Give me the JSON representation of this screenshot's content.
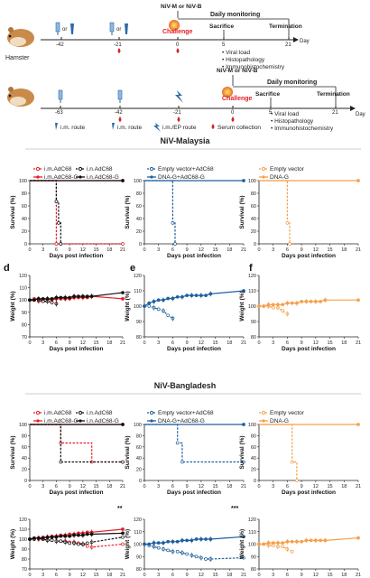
{
  "timeline1": {
    "challenge": "Challenge",
    "virus": "NiV-M or NiV-B",
    "daily": "Daily monitoring",
    "sacrifice": "Sacrifice",
    "termination": "Termination",
    "day": "Day",
    "animal": "Hamster",
    "or1": "or",
    "or2": "or",
    "days": [
      "-42",
      "-21",
      "0",
      "5",
      "21"
    ],
    "bullets": [
      "Viral load",
      "Histopathology",
      "Immunohistochemistry"
    ]
  },
  "timeline2": {
    "challenge": "Challenge",
    "virus": "NiV-M or NiV-B",
    "daily": "Daily monitoring",
    "sacrifice": "Sacrifice",
    "termination": "Termination",
    "day": "Day",
    "days": [
      "-63",
      "-42",
      "-21",
      "0",
      "5",
      "21"
    ],
    "bullets": [
      "Viral load",
      "Histopathology",
      "Immunohistochemistry"
    ],
    "legend": [
      "i.m. route",
      "i.m. route",
      "i.m./EP route",
      "Serum collection"
    ]
  },
  "sections": {
    "malaysia": "NiV-Malaysia",
    "bangladesh": "NiV-Bangladesh"
  },
  "panel_letters": [
    "d",
    "e",
    "f"
  ],
  "labels": {
    "survival": "Survival (%)",
    "weight": "Weight (%)",
    "xlabel": "Days post infection"
  },
  "legends": {
    "g1": [
      "i.m.AdC68",
      "i.m.AdC68-G",
      "i.n.AdC68",
      "i.n.AdC68-G"
    ],
    "g2": [
      "Empty vector+AdC68",
      "DNA-G+AdC68-G"
    ],
    "g3": [
      "Empty vector",
      "DNA-G"
    ]
  },
  "significance": {
    "b_g1": "**",
    "b_g2": "***"
  },
  "colors": {
    "red": "#e41e26",
    "black": "#111111",
    "blue": "#1f5f9e",
    "orange": "#f5a04b"
  },
  "chart_data": [
    {
      "type": "line",
      "title": "",
      "panel": "M-survival-1",
      "ylabel": "Survival (%)",
      "xlabel": "Days post infection",
      "xlim": [
        0,
        21
      ],
      "ylim": [
        0,
        100
      ],
      "series": [
        {
          "name": "i.m.AdC68",
          "color": "#e41e26",
          "dash": true,
          "x": [
            0,
            6,
            6,
            21
          ],
          "y": [
            100,
            100,
            0,
            0
          ]
        },
        {
          "name": "i.m.AdC68-G",
          "color": "#e41e26",
          "dash": false,
          "x": [
            0,
            21
          ],
          "y": [
            100,
            100
          ]
        },
        {
          "name": "i.n.AdC68",
          "color": "#111111",
          "dash": true,
          "x": [
            0,
            6,
            6,
            6.5,
            6.5,
            7,
            7
          ],
          "y": [
            100,
            100,
            67,
            67,
            33,
            33,
            0
          ]
        },
        {
          "name": "i.n.AdC68-G",
          "color": "#111111",
          "dash": false,
          "x": [
            0,
            21
          ],
          "y": [
            100,
            100
          ]
        }
      ]
    },
    {
      "type": "line",
      "title": "",
      "panel": "M-survival-2",
      "ylabel": "Survival (%)",
      "xlabel": "Days post infection",
      "xlim": [
        0,
        21
      ],
      "ylim": [
        0,
        100
      ],
      "series": [
        {
          "name": "Empty vector+AdC68",
          "color": "#1f5f9e",
          "dash": true,
          "x": [
            0,
            6,
            6,
            6.5,
            6.5
          ],
          "y": [
            100,
            100,
            33,
            33,
            0
          ]
        },
        {
          "name": "DNA-G+AdC68-G",
          "color": "#1f5f9e",
          "dash": false,
          "x": [
            0,
            21
          ],
          "y": [
            100,
            100
          ]
        }
      ]
    },
    {
      "type": "line",
      "title": "",
      "panel": "M-survival-3",
      "ylabel": "Survival (%)",
      "xlabel": "Days post infection",
      "xlim": [
        0,
        21
      ],
      "ylim": [
        0,
        100
      ],
      "series": [
        {
          "name": "Empty vector",
          "color": "#f5a04b",
          "dash": true,
          "x": [
            0,
            6,
            6,
            6.5,
            6.5
          ],
          "y": [
            100,
            100,
            33,
            33,
            0
          ]
        },
        {
          "name": "DNA-G",
          "color": "#f5a04b",
          "dash": false,
          "x": [
            0,
            21
          ],
          "y": [
            100,
            100
          ]
        }
      ]
    },
    {
      "type": "line",
      "title": "",
      "panel": "M-weight-d",
      "ylabel": "Weight (%)",
      "xlabel": "Days post infection",
      "xlim": [
        0,
        21
      ],
      "ylim": [
        70,
        120
      ],
      "series": [
        {
          "name": "i.m.AdC68",
          "color": "#e41e26",
          "dash": true,
          "x": [
            0,
            1,
            2,
            3,
            4,
            5,
            6
          ],
          "y": [
            100,
            100,
            99,
            99,
            99,
            98,
            97
          ]
        },
        {
          "name": "i.m.AdC68-G",
          "color": "#e41e26",
          "dash": false,
          "x": [
            0,
            1,
            2,
            3,
            4,
            5,
            6,
            7,
            8,
            9,
            10,
            11,
            12,
            13,
            14,
            21
          ],
          "y": [
            100,
            101,
            101,
            100,
            101,
            100,
            101,
            101,
            101,
            101,
            102,
            102,
            102,
            102,
            103,
            101
          ]
        },
        {
          "name": "i.n.AdC68",
          "color": "#111111",
          "dash": true,
          "x": [
            0,
            1,
            2,
            3,
            4,
            5,
            6
          ],
          "y": [
            100,
            100,
            100,
            99,
            99,
            98,
            97
          ]
        },
        {
          "name": "i.n.AdC68-G",
          "color": "#111111",
          "dash": false,
          "x": [
            0,
            1,
            2,
            3,
            4,
            5,
            6,
            7,
            8,
            9,
            10,
            11,
            12,
            13,
            14,
            21
          ],
          "y": [
            100,
            100,
            101,
            101,
            101,
            101,
            102,
            102,
            102,
            102,
            103,
            103,
            103,
            103,
            103,
            106
          ]
        }
      ]
    },
    {
      "type": "line",
      "title": "",
      "panel": "M-weight-e",
      "ylabel": "Weight (%)",
      "xlabel": "Days post infection",
      "xlim": [
        0,
        21
      ],
      "ylim": [
        80,
        120
      ],
      "series": [
        {
          "name": "Empty vector+AdC68",
          "color": "#1f5f9e",
          "dash": true,
          "x": [
            0,
            1,
            2,
            3,
            4,
            5,
            6
          ],
          "y": [
            100,
            100,
            99,
            98,
            97,
            94,
            92
          ]
        },
        {
          "name": "DNA-G+AdC68-G",
          "color": "#1f5f9e",
          "dash": false,
          "x": [
            0,
            1,
            2,
            3,
            4,
            5,
            6,
            7,
            8,
            9,
            10,
            11,
            12,
            13,
            14,
            21
          ],
          "y": [
            100,
            102,
            103,
            104,
            104,
            105,
            105,
            106,
            106,
            107,
            107,
            107,
            107,
            107,
            108,
            110
          ]
        }
      ]
    },
    {
      "type": "line",
      "title": "",
      "panel": "M-weight-f",
      "ylabel": "Weight (%)",
      "xlabel": "Days post infection",
      "xlim": [
        0,
        21
      ],
      "ylim": [
        80,
        120
      ],
      "series": [
        {
          "name": "Empty vector",
          "color": "#f5a04b",
          "dash": true,
          "x": [
            0,
            1,
            2,
            3,
            4,
            5,
            6
          ],
          "y": [
            100,
            100,
            100,
            99,
            99,
            97,
            95
          ]
        },
        {
          "name": "DNA-G",
          "color": "#f5a04b",
          "dash": false,
          "x": [
            0,
            1,
            2,
            3,
            4,
            5,
            6,
            7,
            8,
            9,
            10,
            11,
            12,
            13,
            14,
            21
          ],
          "y": [
            100,
            100,
            101,
            101,
            101,
            101,
            102,
            102,
            102,
            103,
            103,
            103,
            103,
            103,
            104,
            104
          ]
        }
      ]
    },
    {
      "type": "line",
      "title": "",
      "panel": "B-survival-1",
      "ylabel": "Survival (%)",
      "xlabel": "Days post infection",
      "xlim": [
        0,
        21
      ],
      "ylim": [
        0,
        100
      ],
      "series": [
        {
          "name": "i.m.AdC68",
          "color": "#e41e26",
          "dash": true,
          "x": [
            0,
            7,
            7,
            14,
            14,
            21
          ],
          "y": [
            100,
            100,
            67,
            67,
            33,
            33
          ]
        },
        {
          "name": "i.m.AdC68-G",
          "color": "#e41e26",
          "dash": false,
          "x": [
            0,
            21
          ],
          "y": [
            100,
            100
          ]
        },
        {
          "name": "i.n.AdC68",
          "color": "#111111",
          "dash": true,
          "x": [
            0,
            7,
            7,
            21
          ],
          "y": [
            100,
            100,
            33,
            33
          ]
        },
        {
          "name": "i.n.AdC68-G",
          "color": "#111111",
          "dash": false,
          "x": [
            0,
            21
          ],
          "y": [
            100,
            100
          ]
        }
      ]
    },
    {
      "type": "line",
      "title": "",
      "panel": "B-survival-2",
      "ylabel": "Survival (%)",
      "xlabel": "Days post infection",
      "xlim": [
        0,
        21
      ],
      "ylim": [
        0,
        100
      ],
      "series": [
        {
          "name": "Empty vector+AdC68",
          "color": "#1f5f9e",
          "dash": true,
          "x": [
            0,
            7,
            7,
            8,
            8,
            21
          ],
          "y": [
            100,
            100,
            67,
            67,
            33,
            33
          ]
        },
        {
          "name": "DNA-G+AdC68-G",
          "color": "#1f5f9e",
          "dash": false,
          "x": [
            0,
            21
          ],
          "y": [
            100,
            100
          ]
        }
      ]
    },
    {
      "type": "line",
      "title": "",
      "panel": "B-survival-3",
      "ylabel": "Survival (%)",
      "xlabel": "Days post infection",
      "xlim": [
        0,
        21
      ],
      "ylim": [
        0,
        100
      ],
      "series": [
        {
          "name": "Empty vector",
          "color": "#f5a04b",
          "dash": true,
          "x": [
            0,
            7,
            7,
            8,
            8
          ],
          "y": [
            100,
            100,
            33,
            33,
            0
          ]
        },
        {
          "name": "DNA-G",
          "color": "#f5a04b",
          "dash": false,
          "x": [
            0,
            21
          ],
          "y": [
            100,
            100
          ]
        }
      ]
    },
    {
      "type": "line",
      "title": "",
      "panel": "B-weight-1",
      "ylabel": "Weight (%)",
      "xlabel": "Days post infection",
      "xlim": [
        0,
        21
      ],
      "ylim": [
        70,
        120
      ],
      "series": [
        {
          "name": "i.m.AdC68",
          "color": "#e41e26",
          "dash": true,
          "x": [
            0,
            1,
            2,
            3,
            4,
            5,
            6,
            7,
            8,
            9,
            10,
            11,
            12,
            13,
            14,
            21
          ],
          "y": [
            100,
            100,
            100,
            100,
            99,
            99,
            98,
            98,
            98,
            97,
            97,
            96,
            95,
            93,
            92,
            95
          ]
        },
        {
          "name": "i.m.AdC68-G",
          "color": "#e41e26",
          "dash": false,
          "x": [
            0,
            1,
            2,
            3,
            4,
            5,
            6,
            7,
            8,
            9,
            10,
            11,
            12,
            13,
            14,
            21
          ],
          "y": [
            100,
            101,
            101,
            102,
            102,
            103,
            103,
            104,
            104,
            105,
            105,
            106,
            106,
            107,
            107,
            110
          ]
        },
        {
          "name": "i.n.AdC68",
          "color": "#111111",
          "dash": true,
          "x": [
            0,
            1,
            2,
            3,
            4,
            5,
            6,
            7,
            8,
            9,
            10,
            11,
            12,
            13,
            14,
            21
          ],
          "y": [
            100,
            100,
            101,
            100,
            99,
            99,
            98,
            98,
            97,
            96,
            96,
            95,
            95,
            96,
            97,
            102
          ]
        },
        {
          "name": "i.n.AdC68-G",
          "color": "#111111",
          "dash": false,
          "x": [
            0,
            1,
            2,
            3,
            4,
            5,
            6,
            7,
            8,
            9,
            10,
            11,
            12,
            13,
            14,
            21
          ],
          "y": [
            100,
            101,
            101,
            101,
            102,
            102,
            102,
            103,
            103,
            103,
            104,
            104,
            104,
            105,
            105,
            106
          ]
        }
      ]
    },
    {
      "type": "line",
      "title": "",
      "panel": "B-weight-2",
      "ylabel": "Weight (%)",
      "xlabel": "Days post infection",
      "xlim": [
        0,
        21
      ],
      "ylim": [
        80,
        120
      ],
      "series": [
        {
          "name": "Empty vector+AdC68",
          "color": "#1f5f9e",
          "dash": true,
          "x": [
            0,
            1,
            2,
            3,
            4,
            5,
            6,
            7,
            8,
            9,
            10,
            11,
            12,
            13,
            14,
            21
          ],
          "y": [
            100,
            99,
            98,
            97,
            96,
            95,
            94,
            94,
            93,
            92,
            91,
            90,
            89,
            88,
            88,
            89
          ]
        },
        {
          "name": "DNA-G+AdC68-G",
          "color": "#1f5f9e",
          "dash": false,
          "x": [
            0,
            1,
            2,
            3,
            4,
            5,
            6,
            7,
            8,
            9,
            10,
            11,
            12,
            13,
            14,
            21
          ],
          "y": [
            100,
            100,
            101,
            101,
            101,
            102,
            102,
            102,
            103,
            103,
            103,
            104,
            104,
            104,
            104,
            106
          ]
        }
      ]
    },
    {
      "type": "line",
      "title": "",
      "panel": "B-weight-3",
      "ylabel": "Weight (%)",
      "xlabel": "Days post infection",
      "xlim": [
        0,
        21
      ],
      "ylim": [
        80,
        120
      ],
      "series": [
        {
          "name": "Empty vector",
          "color": "#f5a04b",
          "dash": true,
          "x": [
            0,
            1,
            2,
            3,
            4,
            5,
            6,
            7
          ],
          "y": [
            100,
            100,
            99,
            99,
            98,
            98,
            96,
            94
          ]
        },
        {
          "name": "DNA-G",
          "color": "#f5a04b",
          "dash": false,
          "x": [
            0,
            1,
            2,
            3,
            4,
            5,
            6,
            7,
            8,
            9,
            10,
            11,
            12,
            13,
            14,
            21
          ],
          "y": [
            100,
            100,
            101,
            101,
            101,
            101,
            102,
            102,
            102,
            102,
            103,
            103,
            103,
            103,
            103,
            105
          ]
        }
      ]
    }
  ]
}
